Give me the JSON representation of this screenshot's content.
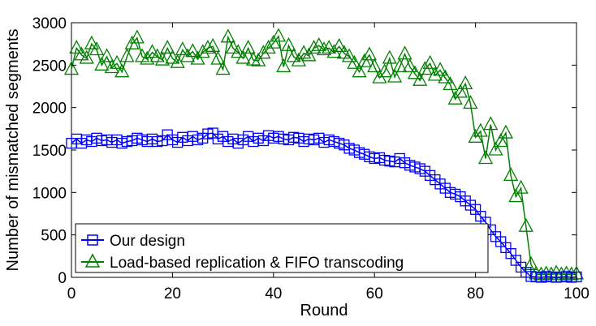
{
  "chart_data": {
    "type": "line",
    "xlabel": "Round",
    "ylabel": "Number of mismatched segments",
    "xlim": [
      0,
      100
    ],
    "ylim": [
      0,
      3000
    ],
    "xticks": [
      0,
      20,
      40,
      60,
      80,
      100
    ],
    "yticks": [
      0,
      500,
      1000,
      1500,
      2000,
      2500,
      3000
    ],
    "x_tick_labels": [
      "0",
      "20",
      "40",
      "60",
      "80",
      "100"
    ],
    "y_tick_labels": [
      "0",
      "500",
      "1000",
      "1500",
      "2000",
      "2500",
      "3000"
    ],
    "grid": false,
    "legend_position": "bottom-left",
    "series": [
      {
        "name": "Our design",
        "color": "#0000ff",
        "marker": "square",
        "x": [
          0,
          1,
          2,
          3,
          4,
          5,
          6,
          7,
          8,
          9,
          10,
          11,
          12,
          13,
          14,
          15,
          16,
          17,
          18,
          19,
          20,
          21,
          22,
          23,
          24,
          25,
          26,
          27,
          28,
          29,
          30,
          31,
          32,
          33,
          34,
          35,
          36,
          37,
          38,
          39,
          40,
          41,
          42,
          43,
          44,
          45,
          46,
          47,
          48,
          49,
          50,
          51,
          52,
          53,
          54,
          55,
          56,
          57,
          58,
          59,
          60,
          61,
          62,
          63,
          64,
          65,
          66,
          67,
          68,
          69,
          70,
          71,
          72,
          73,
          74,
          75,
          76,
          77,
          78,
          79,
          80,
          81,
          82,
          83,
          84,
          85,
          86,
          87,
          88,
          89,
          90,
          91,
          92,
          93,
          94,
          95,
          96,
          97,
          98,
          99,
          100
        ],
        "values": [
          1580,
          1630,
          1580,
          1620,
          1600,
          1640,
          1610,
          1620,
          1590,
          1620,
          1580,
          1600,
          1610,
          1640,
          1620,
          1600,
          1630,
          1600,
          1610,
          1680,
          1620,
          1590,
          1650,
          1610,
          1660,
          1620,
          1640,
          1690,
          1700,
          1630,
          1660,
          1600,
          1630,
          1580,
          1620,
          1660,
          1600,
          1640,
          1610,
          1670,
          1640,
          1660,
          1630,
          1620,
          1650,
          1640,
          1600,
          1630,
          1620,
          1640,
          1590,
          1620,
          1600,
          1580,
          1560,
          1520,
          1500,
          1470,
          1450,
          1420,
          1400,
          1410,
          1380,
          1370,
          1360,
          1400,
          1350,
          1320,
          1300,
          1280,
          1250,
          1200,
          1150,
          1100,
          1050,
          1000,
          980,
          950,
          900,
          850,
          800,
          720,
          650,
          560,
          480,
          420,
          350,
          280,
          200,
          120,
          60,
          10,
          5,
          0,
          10,
          5,
          0,
          5,
          10,
          0,
          5
        ]
      },
      {
        "name": "Load-based replication & FIFO transcoding",
        "color": "#008000",
        "marker": "triangle",
        "x": [
          0,
          1,
          2,
          3,
          4,
          5,
          6,
          7,
          8,
          9,
          10,
          11,
          12,
          13,
          14,
          15,
          16,
          17,
          18,
          19,
          20,
          21,
          22,
          23,
          24,
          25,
          26,
          27,
          28,
          29,
          30,
          31,
          32,
          33,
          34,
          35,
          36,
          37,
          38,
          39,
          40,
          41,
          42,
          43,
          44,
          45,
          46,
          47,
          48,
          49,
          50,
          51,
          52,
          53,
          54,
          55,
          56,
          57,
          58,
          59,
          60,
          61,
          62,
          63,
          64,
          65,
          66,
          67,
          68,
          69,
          70,
          71,
          72,
          73,
          74,
          75,
          76,
          77,
          78,
          79,
          80,
          81,
          82,
          83,
          84,
          85,
          86,
          87,
          88,
          89,
          90,
          91,
          92,
          93,
          94,
          95,
          96,
          97,
          98,
          99,
          100
        ],
        "values": [
          2450,
          2700,
          2620,
          2580,
          2750,
          2680,
          2500,
          2600,
          2470,
          2520,
          2420,
          2600,
          2750,
          2820,
          2600,
          2570,
          2650,
          2600,
          2560,
          2700,
          2580,
          2530,
          2680,
          2600,
          2660,
          2570,
          2650,
          2700,
          2720,
          2570,
          2450,
          2830,
          2700,
          2650,
          2580,
          2700,
          2560,
          2550,
          2640,
          2700,
          2760,
          2840,
          2480,
          2730,
          2600,
          2550,
          2640,
          2610,
          2700,
          2730,
          2680,
          2700,
          2650,
          2720,
          2640,
          2600,
          2520,
          2420,
          2540,
          2620,
          2480,
          2350,
          2420,
          2580,
          2360,
          2480,
          2630,
          2480,
          2400,
          2320,
          2450,
          2520,
          2380,
          2440,
          2350,
          2270,
          2100,
          2180,
          2280,
          2050,
          1650,
          1720,
          1400,
          1800,
          1500,
          1600,
          1700,
          1200,
          950,
          1050,
          600,
          150,
          40,
          30,
          40,
          30,
          50,
          30,
          40,
          30,
          40
        ]
      }
    ]
  }
}
